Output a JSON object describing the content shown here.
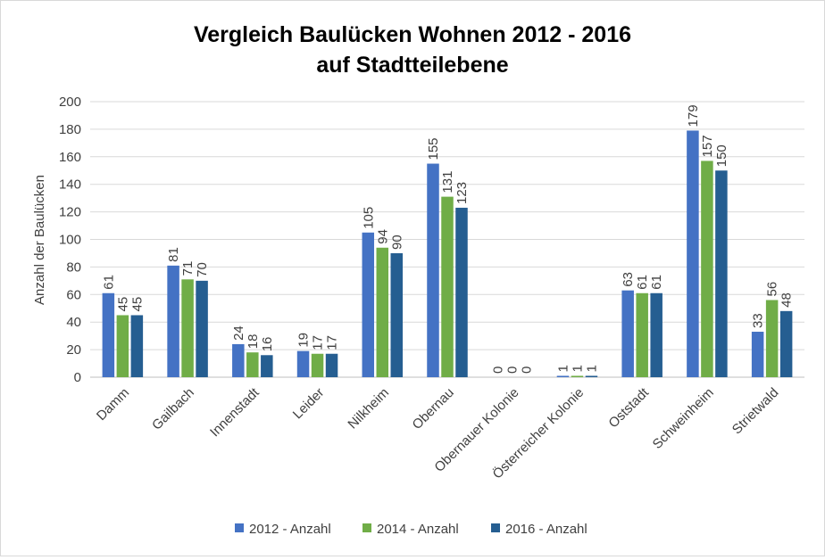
{
  "chart_data": {
    "type": "bar",
    "title": "Vergleich Baulücken Wohnen 2012 - 2016",
    "subtitle": "auf Stadtteilebene",
    "xlabel": "",
    "ylabel": "Anzahl der Baulücken",
    "ylim": [
      0,
      200
    ],
    "ytick_step": 20,
    "grid": true,
    "legend_position": "bottom",
    "categories": [
      "Damm",
      "Gailbach",
      "Innenstadt",
      "Leider",
      "Nilkheim",
      "Obernau",
      "Obernauer Kolonie",
      "Österreicher Kolonie",
      "Oststadt",
      "Schweinheim",
      "Strietwald"
    ],
    "series": [
      {
        "name": "2012 - Anzahl",
        "color": "#4472C4",
        "values": [
          61,
          81,
          24,
          19,
          105,
          155,
          0,
          1,
          63,
          179,
          33
        ]
      },
      {
        "name": "2014 - Anzahl",
        "color": "#70AD47",
        "values": [
          45,
          71,
          18,
          17,
          94,
          131,
          0,
          1,
          61,
          157,
          56
        ]
      },
      {
        "name": "2016 - Anzahl",
        "color": "#255E91",
        "values": [
          45,
          70,
          16,
          17,
          90,
          123,
          0,
          1,
          61,
          150,
          48
        ]
      }
    ]
  }
}
